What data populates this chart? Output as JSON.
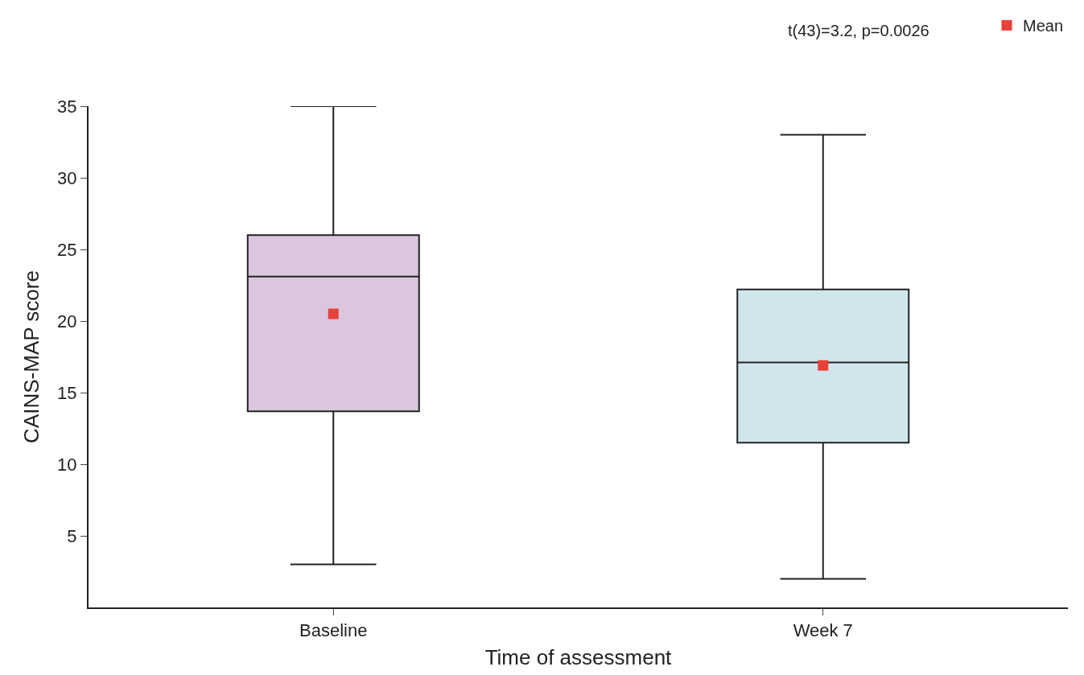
{
  "chart_data": {
    "type": "box",
    "xlabel": "Time of assessment",
    "ylabel": "CAINS-MAP score",
    "categories": [
      "Baseline",
      "Week 7"
    ],
    "boxes": [
      {
        "low": 3,
        "q1": 13.7,
        "median": 23.1,
        "q3": 26.0,
        "high": 35
      },
      {
        "low": 2,
        "q1": 11.5,
        "median": 17.1,
        "q3": 22.2,
        "high": 33
      }
    ],
    "colors": [
      "#dac7de",
      "#d0e6ec"
    ],
    "series": [
      {
        "name": "Mean",
        "type": "scatter",
        "color": "#e8413a",
        "values": [
          20.5,
          16.9
        ]
      }
    ],
    "marker": "square",
    "ylim": [
      0,
      35
    ],
    "yticks": [
      5,
      10,
      15,
      20,
      25,
      30,
      35
    ],
    "grid": false,
    "legend": "top right",
    "annotations": [
      "t(43)=3.2, p=0.0026"
    ]
  }
}
